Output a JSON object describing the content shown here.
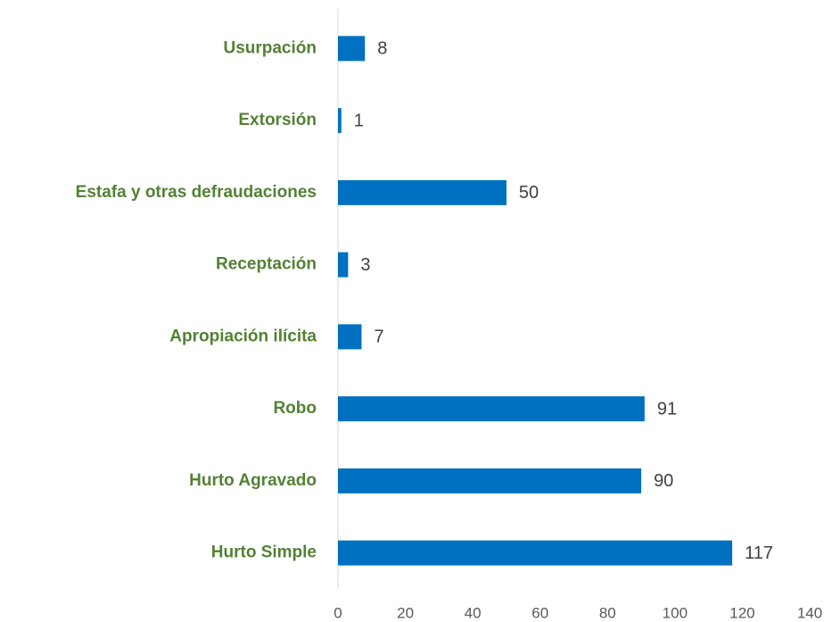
{
  "chart_data": {
    "type": "barh",
    "categories": [
      "Usurpación",
      "Extorsión",
      "Estafa y otras defraudaciones",
      "Receptación",
      "Apropiación ilícita",
      "Robo",
      "Hurto Agravado",
      "Hurto Simple"
    ],
    "values": [
      8,
      1,
      50,
      3,
      7,
      91,
      90,
      117
    ],
    "color": "#0070c0",
    "xlim": [
      0,
      140
    ],
    "xticks": [
      0,
      20,
      40,
      60,
      80,
      100,
      120,
      140
    ],
    "grid": false
  }
}
